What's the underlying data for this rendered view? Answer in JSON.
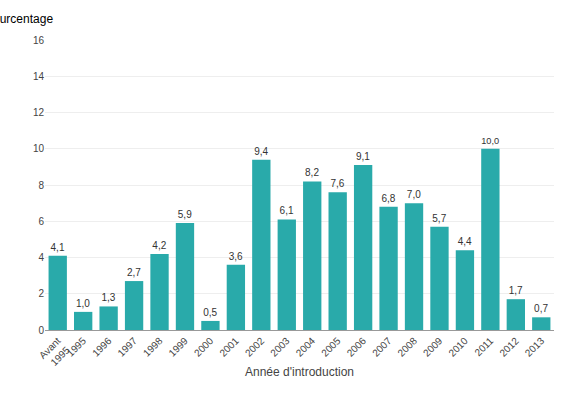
{
  "chart_data": {
    "type": "bar",
    "categories": [
      "Avant\n1995",
      "1995",
      "1996",
      "1997",
      "1998",
      "1999",
      "2000",
      "2001",
      "2002",
      "2003",
      "2004",
      "2005",
      "2006",
      "2007",
      "2008",
      "2009",
      "2010",
      "2011",
      "2012",
      "2013"
    ],
    "values": [
      4.1,
      1.0,
      1.3,
      2.7,
      4.2,
      5.9,
      0.5,
      3.6,
      9.4,
      6.1,
      8.2,
      7.6,
      9.1,
      6.8,
      7.0,
      5.7,
      4.4,
      10.0,
      1.7,
      0.7
    ],
    "value_labels": [
      "4,1",
      "1,0",
      "1,3",
      "2,7",
      "4,2",
      "5,9",
      "0,5",
      "3,6",
      "9,4",
      "6,1",
      "8,2",
      "7,6",
      "9,1",
      "6,8",
      "7,0",
      "5,7",
      "4,4",
      "10,0",
      "1,7",
      "0,7"
    ],
    "color": "#29AAAA",
    "xlabel": "Année d'introduction",
    "ylabel": "Pourcentage",
    "ylim": [
      0,
      16
    ],
    "yticks": [
      0,
      2,
      4,
      6,
      8,
      10,
      12,
      14,
      16
    ],
    "grid": true,
    "data_labels": true
  }
}
